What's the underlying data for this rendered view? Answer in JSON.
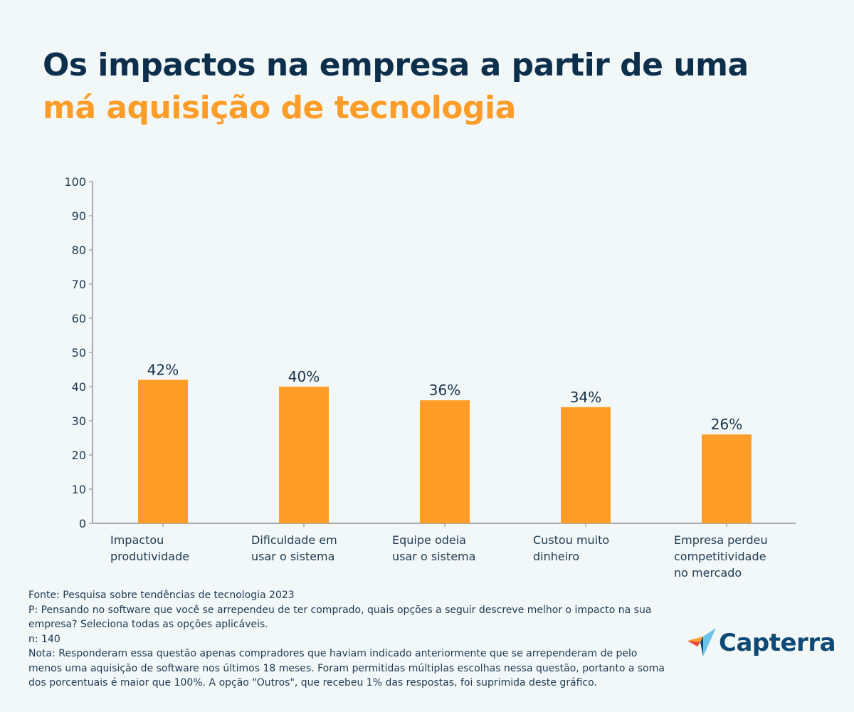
{
  "title": {
    "line1": "Os impactos na empresa a partir de uma",
    "line2": "má aquisição de tecnologia"
  },
  "colors": {
    "title": "#0c2f4c",
    "accent": "#ff9d28",
    "bar": "#ff9d28",
    "background": "#f2f7f8"
  },
  "chart_data": {
    "type": "bar",
    "categories": [
      [
        "Impactou",
        "produtividade"
      ],
      [
        "Dificuldade em",
        "usar o sistema"
      ],
      [
        "Equipe odeia",
        "usar o sistema"
      ],
      [
        "Custou muito",
        "dinheiro"
      ],
      [
        "Empresa perdeu",
        "competitividade",
        "no mercado"
      ]
    ],
    "values": [
      42,
      40,
      36,
      34,
      26
    ],
    "data_labels": [
      "42%",
      "40%",
      "36%",
      "34%",
      "26%"
    ],
    "ylim": [
      0,
      100
    ],
    "yticks": [
      0,
      10,
      20,
      30,
      40,
      50,
      60,
      70,
      80,
      90,
      100
    ],
    "grid": false,
    "xlabel": "",
    "ylabel": ""
  },
  "notes": {
    "source": "Fonte: Pesquisa sobre tendências de tecnologia 2023",
    "question": "P: Pensando no software que você se arrependeu de ter comprado, quais opções a seguir descreve melhor o impacto na sua empresa? Seleciona todas as opções aplicáveis.",
    "n": "n: 140",
    "note": "Nota: Responderam essa questão apenas compradores que haviam indicado anteriormente que se arrependeram de pelo menos uma aquisição de software nos últimos 18 meses. Foram permitidas múltiplas escolhas nessa questão, portanto a soma dos porcentuais é maior que 100%. A opção \"Outros\", que recebeu 1% das respostas, foi suprimida deste gráfico."
  },
  "logo": {
    "text": "Capterra"
  }
}
